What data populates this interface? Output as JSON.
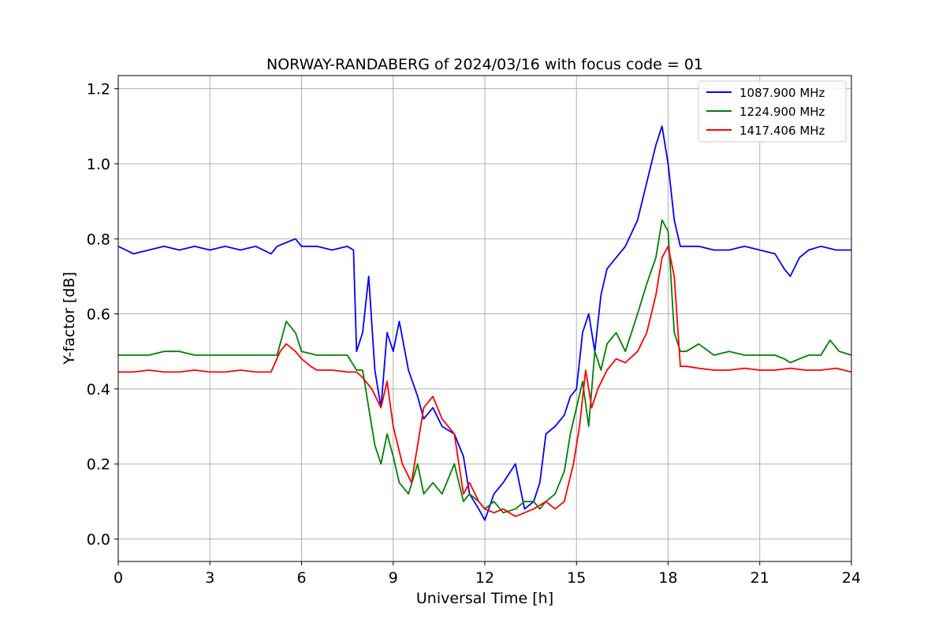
{
  "chart_data": {
    "type": "line",
    "title": "NORWAY-RANDABERG of 2024/03/16 with focus code = 01",
    "xlabel": "Universal Time [h]",
    "ylabel": "Y-factor [dB]",
    "xlim": [
      0,
      24
    ],
    "ylim": [
      -0.06,
      1.235
    ],
    "xticks": [
      0,
      3,
      6,
      9,
      12,
      15,
      18,
      21,
      24
    ],
    "xtick_labels": [
      "0",
      "3",
      "6",
      "9",
      "12",
      "15",
      "18",
      "21",
      "24"
    ],
    "yticks": [
      0.0,
      0.2,
      0.4,
      0.6,
      0.8,
      1.0,
      1.2
    ],
    "ytick_labels": [
      "0.0",
      "0.2",
      "0.4",
      "0.6",
      "0.8",
      "1.0",
      "1.2"
    ],
    "grid": true,
    "legend_position": "top-right",
    "series": [
      {
        "name": "1087.900 MHz",
        "color": "#0000ff",
        "x": [
          0,
          0.5,
          1,
          1.5,
          2,
          2.5,
          3,
          3.5,
          4,
          4.5,
          5,
          5.2,
          5.5,
          5.8,
          6,
          6.5,
          7,
          7.5,
          7.7,
          7.8,
          8,
          8.2,
          8.4,
          8.6,
          8.8,
          9,
          9.2,
          9.5,
          9.8,
          10,
          10.3,
          10.6,
          11,
          11.3,
          11.5,
          11.8,
          12,
          12.3,
          12.6,
          13,
          13.3,
          13.6,
          13.8,
          14,
          14.3,
          14.6,
          14.8,
          15,
          15.2,
          15.4,
          15.6,
          15.8,
          16,
          16.3,
          16.6,
          17,
          17.3,
          17.6,
          17.8,
          18,
          18.2,
          18.4,
          18.6,
          19,
          19.5,
          20,
          20.5,
          21,
          21.5,
          21.8,
          22,
          22.3,
          22.6,
          23,
          23.5,
          24
        ],
        "y": [
          0.78,
          0.76,
          0.77,
          0.78,
          0.77,
          0.78,
          0.77,
          0.78,
          0.77,
          0.78,
          0.76,
          0.78,
          0.79,
          0.8,
          0.78,
          0.78,
          0.77,
          0.78,
          0.77,
          0.5,
          0.55,
          0.7,
          0.45,
          0.35,
          0.55,
          0.5,
          0.58,
          0.45,
          0.38,
          0.32,
          0.35,
          0.3,
          0.28,
          0.22,
          0.12,
          0.08,
          0.05,
          0.12,
          0.15,
          0.2,
          0.08,
          0.1,
          0.15,
          0.28,
          0.3,
          0.33,
          0.38,
          0.4,
          0.55,
          0.6,
          0.5,
          0.65,
          0.72,
          0.75,
          0.78,
          0.85,
          0.95,
          1.05,
          1.1,
          1.0,
          0.85,
          0.78,
          0.78,
          0.78,
          0.77,
          0.77,
          0.78,
          0.77,
          0.76,
          0.72,
          0.7,
          0.75,
          0.77,
          0.78,
          0.77,
          0.77
        ]
      },
      {
        "name": "1224.900 MHz",
        "color": "#008000",
        "x": [
          0,
          0.5,
          1,
          1.5,
          2,
          2.5,
          3,
          3.5,
          4,
          4.5,
          5,
          5.2,
          5.5,
          5.8,
          6,
          6.5,
          7,
          7.5,
          7.8,
          8,
          8.2,
          8.4,
          8.6,
          8.8,
          9,
          9.2,
          9.5,
          9.8,
          10,
          10.3,
          10.6,
          11,
          11.3,
          11.5,
          11.8,
          12,
          12.3,
          12.6,
          13,
          13.3,
          13.6,
          13.8,
          14,
          14.3,
          14.6,
          14.8,
          15,
          15.2,
          15.4,
          15.6,
          15.8,
          16,
          16.3,
          16.6,
          17,
          17.3,
          17.6,
          17.8,
          18,
          18.2,
          18.4,
          18.6,
          19,
          19.5,
          20,
          20.5,
          21,
          21.5,
          21.8,
          22,
          22.3,
          22.6,
          23,
          23.3,
          23.6,
          24
        ],
        "y": [
          0.49,
          0.49,
          0.49,
          0.5,
          0.5,
          0.49,
          0.49,
          0.49,
          0.49,
          0.49,
          0.49,
          0.49,
          0.58,
          0.55,
          0.5,
          0.49,
          0.49,
          0.49,
          0.45,
          0.45,
          0.35,
          0.25,
          0.2,
          0.28,
          0.22,
          0.15,
          0.12,
          0.2,
          0.12,
          0.15,
          0.12,
          0.2,
          0.1,
          0.12,
          0.1,
          0.08,
          0.1,
          0.07,
          0.08,
          0.1,
          0.1,
          0.08,
          0.1,
          0.12,
          0.18,
          0.28,
          0.35,
          0.42,
          0.3,
          0.5,
          0.45,
          0.52,
          0.55,
          0.5,
          0.6,
          0.68,
          0.75,
          0.85,
          0.82,
          0.55,
          0.5,
          0.5,
          0.52,
          0.49,
          0.5,
          0.49,
          0.49,
          0.49,
          0.48,
          0.47,
          0.48,
          0.49,
          0.49,
          0.53,
          0.5,
          0.49
        ]
      },
      {
        "name": "1417.406 MHz",
        "color": "#ff0000",
        "x": [
          0,
          0.5,
          1,
          1.5,
          2,
          2.5,
          3,
          3.5,
          4,
          4.5,
          5,
          5.3,
          5.5,
          5.8,
          6,
          6.3,
          6.5,
          7,
          7.5,
          7.8,
          8,
          8.3,
          8.6,
          8.8,
          9,
          9.3,
          9.6,
          9.9,
          10,
          10.3,
          10.6,
          11,
          11.3,
          11.5,
          11.8,
          12,
          12.3,
          12.6,
          13,
          13.3,
          13.6,
          14,
          14.3,
          14.6,
          14.9,
          15.1,
          15.3,
          15.5,
          15.7,
          16,
          16.3,
          16.6,
          17,
          17.3,
          17.6,
          17.8,
          18,
          18.2,
          18.4,
          18.6,
          19,
          19.5,
          20,
          20.5,
          21,
          21.5,
          22,
          22.5,
          23,
          23.5,
          24
        ],
        "y": [
          0.445,
          0.445,
          0.45,
          0.445,
          0.445,
          0.45,
          0.445,
          0.445,
          0.45,
          0.445,
          0.445,
          0.5,
          0.52,
          0.5,
          0.48,
          0.46,
          0.45,
          0.45,
          0.445,
          0.445,
          0.43,
          0.4,
          0.35,
          0.42,
          0.3,
          0.2,
          0.15,
          0.3,
          0.35,
          0.38,
          0.32,
          0.28,
          0.12,
          0.15,
          0.1,
          0.08,
          0.07,
          0.08,
          0.06,
          0.07,
          0.08,
          0.1,
          0.08,
          0.1,
          0.2,
          0.3,
          0.45,
          0.35,
          0.4,
          0.45,
          0.48,
          0.47,
          0.5,
          0.55,
          0.65,
          0.75,
          0.78,
          0.7,
          0.46,
          0.46,
          0.455,
          0.45,
          0.45,
          0.455,
          0.45,
          0.45,
          0.455,
          0.45,
          0.45,
          0.455,
          0.445
        ]
      }
    ]
  }
}
